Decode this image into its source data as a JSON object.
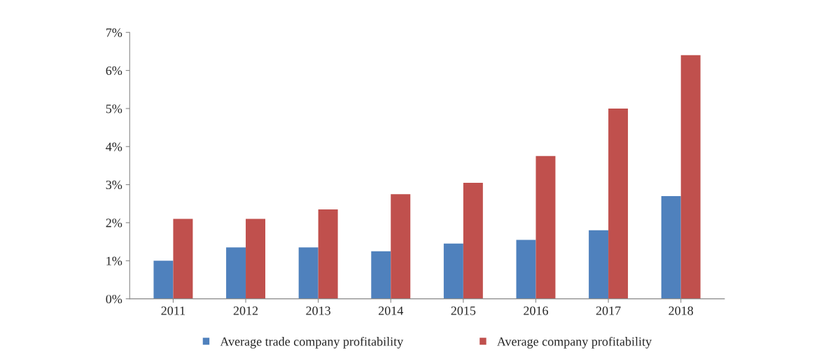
{
  "chart_data": {
    "type": "bar",
    "categories": [
      "2011",
      "2012",
      "2013",
      "2014",
      "2015",
      "2016",
      "2017",
      "2018"
    ],
    "series": [
      {
        "name": "Average trade company profitability",
        "color": "#4f81bd",
        "values": [
          1.0,
          1.35,
          1.35,
          1.25,
          1.45,
          1.55,
          1.8,
          2.7
        ]
      },
      {
        "name": "Average company profitability",
        "color": "#c0504d",
        "values": [
          2.1,
          2.1,
          2.35,
          2.75,
          3.05,
          3.75,
          5.0,
          6.4
        ]
      }
    ],
    "ylim": [
      0,
      7
    ],
    "yticks": [
      {
        "value": 0,
        "label": "0%"
      },
      {
        "value": 1,
        "label": "1%"
      },
      {
        "value": 2,
        "label": "2%"
      },
      {
        "value": 3,
        "label": "3%"
      },
      {
        "value": 4,
        "label": "4%"
      },
      {
        "value": 5,
        "label": "5%"
      },
      {
        "value": 6,
        "label": "6%"
      },
      {
        "value": 7,
        "label": "7%"
      }
    ],
    "grid": false,
    "legend": "bottom"
  }
}
